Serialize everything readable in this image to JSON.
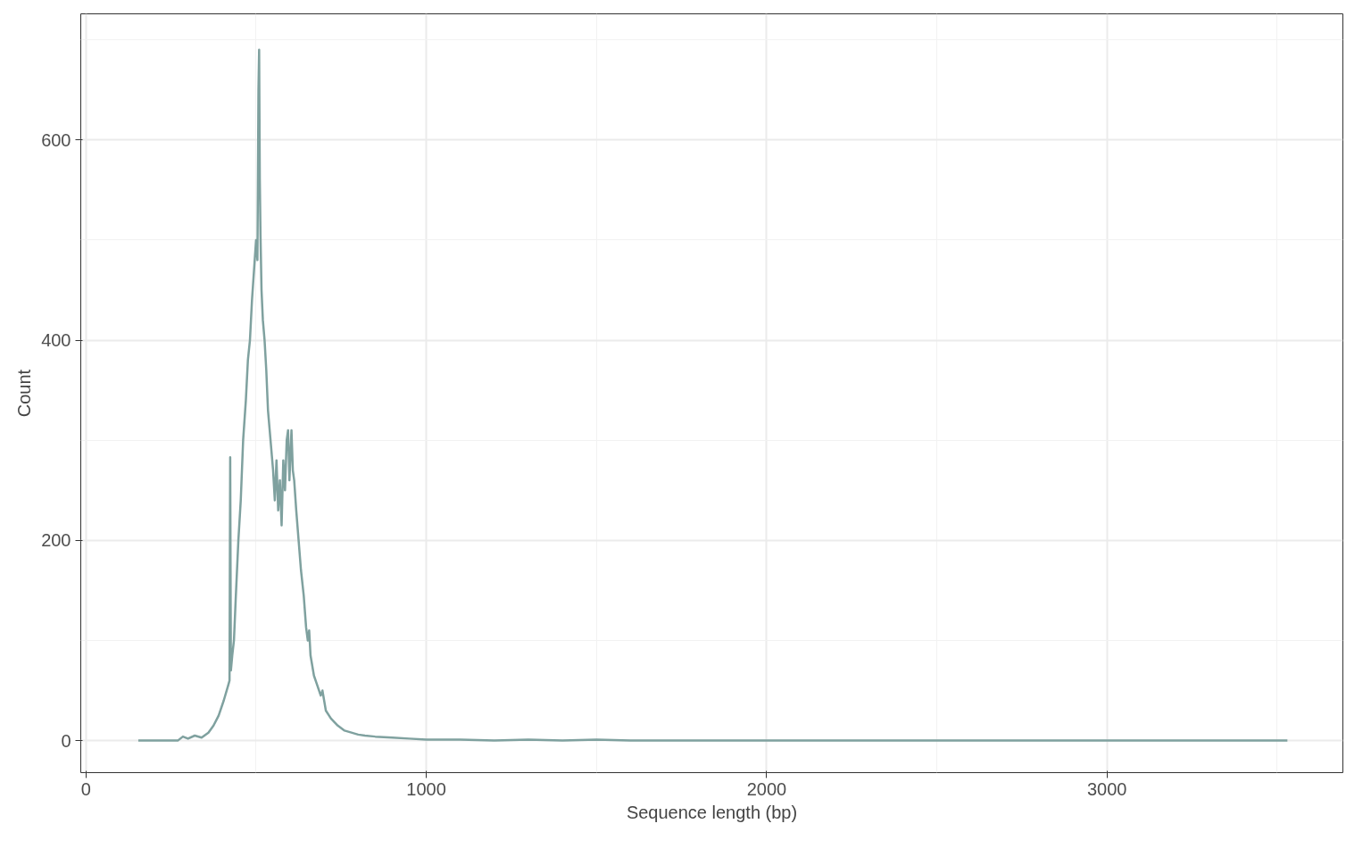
{
  "chart_data": {
    "type": "line",
    "xlabel": "Sequence length (bp)",
    "ylabel": "Count",
    "x": [
      154,
      270,
      285,
      300,
      320,
      340,
      360,
      375,
      390,
      405,
      418,
      422,
      424,
      426,
      430,
      435,
      440,
      448,
      455,
      462,
      470,
      476,
      482,
      488,
      494,
      500,
      504,
      507,
      509,
      511,
      513,
      516,
      520,
      525,
      530,
      535,
      540,
      545,
      550,
      555,
      560,
      565,
      570,
      575,
      580,
      585,
      590,
      594,
      598,
      604,
      608,
      612,
      618,
      625,
      632,
      640,
      647,
      652,
      656,
      660,
      670,
      680,
      690,
      695,
      705,
      720,
      740,
      760,
      780,
      800,
      820,
      850,
      900,
      950,
      1000,
      1100,
      1200,
      1300,
      1400,
      1500,
      1600,
      2000,
      3000,
      3530
    ],
    "series": [
      {
        "color": "#7fa19f",
        "values": [
          0,
          0,
          4,
          2,
          5,
          3,
          8,
          15,
          25,
          40,
          55,
          60,
          283,
          70,
          85,
          100,
          140,
          200,
          240,
          300,
          340,
          380,
          400,
          440,
          470,
          500,
          480,
          650,
          690,
          560,
          505,
          450,
          420,
          400,
          370,
          330,
          310,
          290,
          270,
          240,
          280,
          230,
          260,
          215,
          280,
          250,
          300,
          310,
          260,
          310,
          270,
          260,
          230,
          200,
          170,
          145,
          113,
          100,
          110,
          85,
          65,
          55,
          45,
          50,
          30,
          22,
          15,
          10,
          8,
          6,
          5,
          4,
          3,
          2,
          1,
          1,
          0,
          1,
          0,
          1,
          0,
          0,
          0,
          0
        ]
      }
    ],
    "xlim": [
      -15,
      3693
    ],
    "ylim": [
      -32,
      726
    ],
    "xticks": [
      0,
      1000,
      2000,
      3000
    ],
    "yticks": [
      0,
      200,
      400,
      600
    ],
    "grid": true,
    "marker": "none",
    "line_style": "solid"
  }
}
